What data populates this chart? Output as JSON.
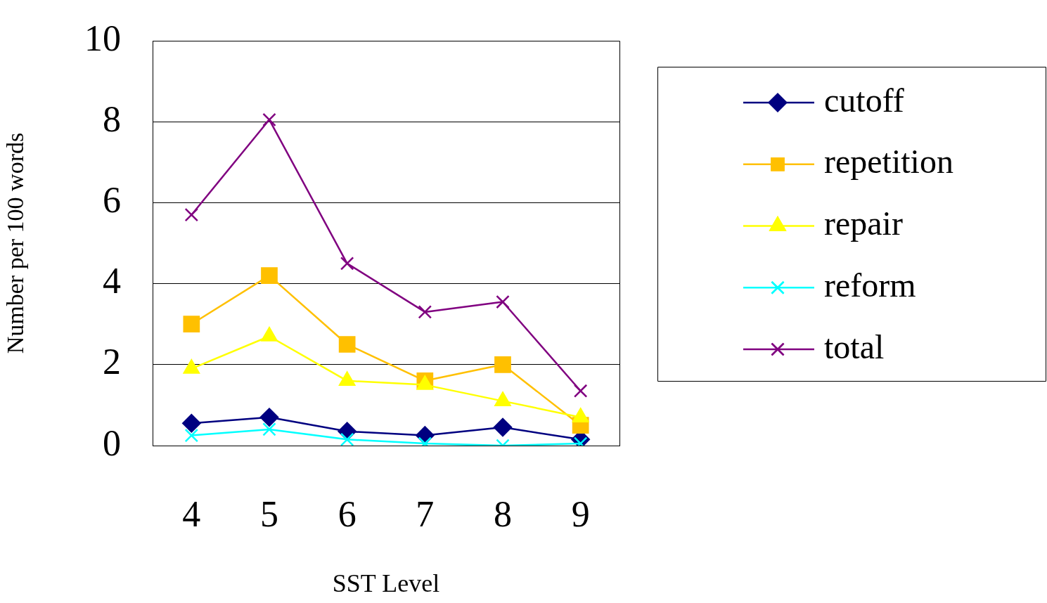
{
  "chart_data": {
    "type": "line",
    "xlabel": "SST Level",
    "ylabel": "Number per 100 words",
    "categories": [
      "4",
      "5",
      "6",
      "7",
      "8",
      "9"
    ],
    "series": [
      {
        "name": "cutoff",
        "color": "#000080",
        "marker": "diamond",
        "values": [
          0.55,
          0.7,
          0.35,
          0.25,
          0.45,
          0.15
        ]
      },
      {
        "name": "repetition",
        "color": "#ffc000",
        "marker": "square",
        "values": [
          3.0,
          4.2,
          2.5,
          1.6,
          2.0,
          0.5
        ]
      },
      {
        "name": "repair",
        "color": "#ffff00",
        "marker": "triangle",
        "values": [
          1.9,
          2.7,
          1.6,
          1.5,
          1.1,
          0.7
        ]
      },
      {
        "name": "reform",
        "color": "#00ffff",
        "marker": "cross",
        "values": [
          0.25,
          0.4,
          0.15,
          0.05,
          0,
          0.05
        ]
      },
      {
        "name": "total",
        "color": "#800080",
        "marker": "cross",
        "values": [
          5.7,
          8.05,
          4.5,
          3.3,
          3.55,
          1.35
        ]
      }
    ],
    "ylim": [
      0,
      10
    ],
    "yticks": [
      0,
      2,
      4,
      6,
      8,
      10
    ],
    "grid": "y",
    "legend": "right",
    "line_style": "solid"
  }
}
